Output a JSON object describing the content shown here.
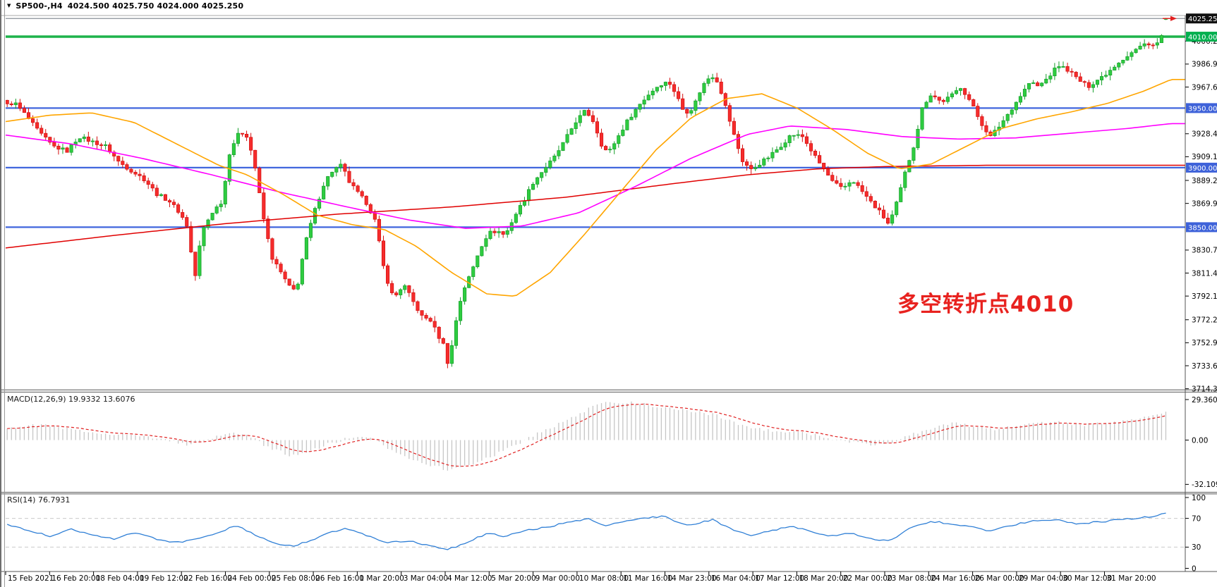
{
  "window": {
    "symbol_period": "SP500-,H4",
    "ohlc": "4024.500 4025.750 4024.000 4025.250"
  },
  "indicators": {
    "macd_label": "MACD(12,26,9) 19.9332 13.6076",
    "rsi_label": "RSI(14) 76.7931"
  },
  "annotation": {
    "text": "多空转折点4010",
    "color": "#e8221f"
  },
  "colors": {
    "up_fill": "#2ecc40",
    "up_stroke": "#169e2b",
    "down_fill": "#f52c2c",
    "down_stroke": "#d40f0f",
    "ma_fast_orange": "#ffa500",
    "ma_mid_magenta": "#ff00ff",
    "ma_slow_red": "#e00000",
    "macd_hist": "#c6c6c6",
    "macd_signal": "#e02020",
    "rsi_line": "#2f7fd6",
    "rsi_level_dash": "#c9c9c9",
    "level_blue": "#4066dd",
    "level_green": "#1db34a",
    "current_price_line": "#8a9099",
    "badge_black": "#111111",
    "badge_green": "#00b050",
    "badge_blue": "#3e62d9",
    "axis_text": "#000000",
    "frame": "#555555"
  },
  "chart_data": {
    "type": "candlestick",
    "symbol": "SP500-",
    "timeframe": "H4",
    "current_ohlc": {
      "open": 4024.5,
      "high": 4025.75,
      "low": 4024.0,
      "close": 4025.25
    },
    "y_axis": {
      "range_top": 4031.5,
      "range_bottom": 3711.5,
      "ticks": [
        {
          "label": "4006.280",
          "price": 4006.28
        },
        {
          "label": "3986.975",
          "price": 3986.975
        },
        {
          "label": "3967.670",
          "price": 3967.67
        },
        {
          "label": "3928.475",
          "price": 3928.475
        },
        {
          "label": "3909.170",
          "price": 3909.17
        },
        {
          "label": "3889.280",
          "price": 3889.28
        },
        {
          "label": "3869.975",
          "price": 3869.975
        },
        {
          "label": "3830.780",
          "price": 3830.78
        },
        {
          "label": "3811.475",
          "price": 3811.475
        },
        {
          "label": "3792.170",
          "price": 3792.17
        },
        {
          "label": "3772.280",
          "price": 3772.28
        },
        {
          "label": "3752.975",
          "price": 3752.975
        },
        {
          "label": "3733.670",
          "price": 3733.67
        },
        {
          "label": "3714.365",
          "price": 3714.365
        }
      ],
      "badges": [
        {
          "label": "4025.250",
          "price": 4025.25,
          "bg": "badge_black"
        },
        {
          "label": "4010.000",
          "price": 4010.0,
          "bg": "badge_green"
        },
        {
          "label": "3950.000",
          "price": 3950.0,
          "bg": "badge_blue"
        },
        {
          "label": "3900.000",
          "price": 3900.0,
          "bg": "badge_blue"
        },
        {
          "label": "3850.000",
          "price": 3850.0,
          "bg": "badge_blue"
        }
      ]
    },
    "levels": [
      {
        "price": 4025.25,
        "color": "current_price_line",
        "width": 1.2
      },
      {
        "price": 4010.0,
        "color": "level_green",
        "width": 3.5
      },
      {
        "price": 3950.0,
        "color": "level_blue",
        "width": 2.2
      },
      {
        "price": 3900.0,
        "color": "level_blue",
        "width": 2.2
      },
      {
        "price": 3850.0,
        "color": "level_blue",
        "width": 2.2
      }
    ],
    "time_axis": {
      "labels": [
        "15 Feb 2021",
        "16 Feb 20:00",
        "18 Feb 04:00",
        "19 Feb 12:00",
        "22 Feb 16:00",
        "24 Feb 00:00",
        "25 Feb 08:00",
        "26 Feb 16:00",
        "1 Mar 20:00",
        "3 Mar 04:00",
        "4 Mar 12:00",
        "5 Mar 20:00",
        "9 Mar 00:00",
        "10 Mar 08:00",
        "11 Mar 16:00",
        "14 Mar 23:00",
        "16 Mar 04:00",
        "17 Mar 12:00",
        "18 Mar 20:00",
        "22 Mar 00:00",
        "23 Mar 08:00",
        "24 Mar 16:00",
        "26 Mar 00:00",
        "29 Mar 04:00",
        "30 Mar 12:00",
        "31 Mar 20:00"
      ]
    },
    "price_path": [
      [
        8,
        3952
      ],
      [
        20,
        3955
      ],
      [
        35,
        3945
      ],
      [
        55,
        3930
      ],
      [
        75,
        3918
      ],
      [
        95,
        3914
      ],
      [
        112,
        3926
      ],
      [
        130,
        3922
      ],
      [
        150,
        3918
      ],
      [
        168,
        3905
      ],
      [
        185,
        3898
      ],
      [
        205,
        3890
      ],
      [
        222,
        3878
      ],
      [
        240,
        3872
      ],
      [
        255,
        3862
      ],
      [
        266,
        3850
      ],
      [
        276,
        3806
      ],
      [
        286,
        3846
      ],
      [
        300,
        3862
      ],
      [
        315,
        3872
      ],
      [
        326,
        3915
      ],
      [
        338,
        3928
      ],
      [
        348,
        3930
      ],
      [
        360,
        3906
      ],
      [
        372,
        3862
      ],
      [
        385,
        3825
      ],
      [
        398,
        3812
      ],
      [
        410,
        3800
      ],
      [
        420,
        3796
      ],
      [
        432,
        3835
      ],
      [
        445,
        3862
      ],
      [
        460,
        3888
      ],
      [
        472,
        3898
      ],
      [
        484,
        3902
      ],
      [
        495,
        3888
      ],
      [
        508,
        3878
      ],
      [
        520,
        3870
      ],
      [
        532,
        3855
      ],
      [
        545,
        3812
      ],
      [
        558,
        3790
      ],
      [
        572,
        3802
      ],
      [
        585,
        3788
      ],
      [
        598,
        3775
      ],
      [
        610,
        3772
      ],
      [
        622,
        3758
      ],
      [
        630,
        3750
      ],
      [
        636,
        3732
      ],
      [
        644,
        3765
      ],
      [
        655,
        3795
      ],
      [
        668,
        3812
      ],
      [
        680,
        3832
      ],
      [
        692,
        3845
      ],
      [
        705,
        3847
      ],
      [
        716,
        3843
      ],
      [
        728,
        3858
      ],
      [
        742,
        3872
      ],
      [
        756,
        3888
      ],
      [
        770,
        3898
      ],
      [
        785,
        3908
      ],
      [
        800,
        3922
      ],
      [
        815,
        3938
      ],
      [
        830,
        3948
      ],
      [
        842,
        3938
      ],
      [
        852,
        3920
      ],
      [
        862,
        3912
      ],
      [
        875,
        3925
      ],
      [
        890,
        3940
      ],
      [
        905,
        3952
      ],
      [
        920,
        3962
      ],
      [
        935,
        3970
      ],
      [
        948,
        3972
      ],
      [
        958,
        3962
      ],
      [
        970,
        3946
      ],
      [
        982,
        3950
      ],
      [
        995,
        3968
      ],
      [
        1008,
        3978
      ],
      [
        1018,
        3972
      ],
      [
        1028,
        3952
      ],
      [
        1040,
        3928
      ],
      [
        1052,
        3906
      ],
      [
        1065,
        3898
      ],
      [
        1078,
        3904
      ],
      [
        1092,
        3910
      ],
      [
        1106,
        3918
      ],
      [
        1122,
        3928
      ],
      [
        1138,
        3926
      ],
      [
        1152,
        3912
      ],
      [
        1166,
        3900
      ],
      [
        1180,
        3888
      ],
      [
        1194,
        3882
      ],
      [
        1208,
        3890
      ],
      [
        1222,
        3880
      ],
      [
        1236,
        3870
      ],
      [
        1248,
        3862
      ],
      [
        1260,
        3852
      ],
      [
        1272,
        3872
      ],
      [
        1284,
        3898
      ],
      [
        1296,
        3920
      ],
      [
        1308,
        3952
      ],
      [
        1320,
        3962
      ],
      [
        1334,
        3955
      ],
      [
        1348,
        3960
      ],
      [
        1362,
        3968
      ],
      [
        1376,
        3955
      ],
      [
        1390,
        3938
      ],
      [
        1404,
        3926
      ],
      [
        1418,
        3936
      ],
      [
        1432,
        3948
      ],
      [
        1446,
        3960
      ],
      [
        1460,
        3972
      ],
      [
        1472,
        3968
      ],
      [
        1486,
        3976
      ],
      [
        1500,
        3986
      ],
      [
        1514,
        3982
      ],
      [
        1528,
        3974
      ],
      [
        1542,
        3968
      ],
      [
        1556,
        3974
      ],
      [
        1570,
        3980
      ],
      [
        1584,
        3988
      ],
      [
        1598,
        3994
      ],
      [
        1612,
        4000
      ],
      [
        1626,
        4005
      ],
      [
        1638,
        4002
      ],
      [
        1646,
        4010
      ],
      [
        1652,
        4018
      ],
      [
        1656,
        4024
      ]
    ],
    "ma_orange": [
      [
        0,
        3938
      ],
      [
        70,
        3944
      ],
      [
        130,
        3946
      ],
      [
        190,
        3938
      ],
      [
        250,
        3920
      ],
      [
        310,
        3902
      ],
      [
        350,
        3894
      ],
      [
        400,
        3878
      ],
      [
        450,
        3860
      ],
      [
        500,
        3852
      ],
      [
        545,
        3848
      ],
      [
        590,
        3834
      ],
      [
        640,
        3812
      ],
      [
        690,
        3794
      ],
      [
        730,
        3792
      ],
      [
        780,
        3812
      ],
      [
        830,
        3845
      ],
      [
        880,
        3880
      ],
      [
        930,
        3915
      ],
      [
        980,
        3942
      ],
      [
        1030,
        3958
      ],
      [
        1080,
        3962
      ],
      [
        1130,
        3950
      ],
      [
        1180,
        3932
      ],
      [
        1230,
        3912
      ],
      [
        1275,
        3899
      ],
      [
        1320,
        3903
      ],
      [
        1370,
        3918
      ],
      [
        1420,
        3933
      ],
      [
        1470,
        3941
      ],
      [
        1520,
        3947
      ],
      [
        1570,
        3954
      ],
      [
        1620,
        3964
      ],
      [
        1660,
        3974
      ]
    ],
    "ma_magenta": [
      [
        0,
        3928
      ],
      [
        100,
        3920
      ],
      [
        200,
        3908
      ],
      [
        300,
        3894
      ],
      [
        400,
        3879
      ],
      [
        500,
        3866
      ],
      [
        580,
        3856
      ],
      [
        660,
        3849
      ],
      [
        740,
        3851
      ],
      [
        820,
        3862
      ],
      [
        900,
        3884
      ],
      [
        980,
        3908
      ],
      [
        1060,
        3928
      ],
      [
        1120,
        3935
      ],
      [
        1200,
        3932
      ],
      [
        1280,
        3926
      ],
      [
        1360,
        3924
      ],
      [
        1440,
        3925
      ],
      [
        1520,
        3929
      ],
      [
        1600,
        3933
      ],
      [
        1660,
        3937
      ]
    ],
    "ma_red": [
      [
        0,
        3832
      ],
      [
        160,
        3843
      ],
      [
        320,
        3853
      ],
      [
        480,
        3861
      ],
      [
        640,
        3867
      ],
      [
        800,
        3875
      ],
      [
        960,
        3887
      ],
      [
        1060,
        3894
      ],
      [
        1160,
        3899
      ],
      [
        1260,
        3901
      ],
      [
        1400,
        3902
      ],
      [
        1550,
        3902
      ],
      [
        1660,
        3902
      ]
    ],
    "macd": {
      "current_main": 19.9332,
      "current_signal": 13.6076,
      "scale_ticks": [
        {
          "label": "29.3605",
          "v": 29.3605
        },
        {
          "label": "0.00",
          "v": 0
        },
        {
          "label": "-32.1096",
          "v": -32.1096
        }
      ],
      "path": [
        [
          8,
          9
        ],
        [
          60,
          11
        ],
        [
          120,
          6
        ],
        [
          180,
          4
        ],
        [
          240,
          0
        ],
        [
          270,
          -4
        ],
        [
          300,
          1
        ],
        [
          330,
          6
        ],
        [
          352,
          3
        ],
        [
          380,
          -5
        ],
        [
          410,
          -11
        ],
        [
          440,
          -8
        ],
        [
          470,
          -2
        ],
        [
          500,
          2
        ],
        [
          525,
          1
        ],
        [
          548,
          -5
        ],
        [
          575,
          -12
        ],
        [
          605,
          -17
        ],
        [
          635,
          -22
        ],
        [
          665,
          -18
        ],
        [
          695,
          -12
        ],
        [
          722,
          -6
        ],
        [
          750,
          2
        ],
        [
          780,
          9
        ],
        [
          810,
          16
        ],
        [
          840,
          24
        ],
        [
          865,
          28
        ],
        [
          895,
          27
        ],
        [
          925,
          25
        ],
        [
          955,
          22
        ],
        [
          985,
          21
        ],
        [
          1015,
          18
        ],
        [
          1045,
          12
        ],
        [
          1075,
          8
        ],
        [
          1105,
          6
        ],
        [
          1140,
          5
        ],
        [
          1170,
          2
        ],
        [
          1200,
          -1
        ],
        [
          1235,
          -3
        ],
        [
          1262,
          -2
        ],
        [
          1292,
          4
        ],
        [
          1322,
          9
        ],
        [
          1352,
          12
        ],
        [
          1382,
          10
        ],
        [
          1412,
          8
        ],
        [
          1442,
          10
        ],
        [
          1472,
          12
        ],
        [
          1502,
          13
        ],
        [
          1532,
          11
        ],
        [
          1562,
          12
        ],
        [
          1592,
          14
        ],
        [
          1622,
          17
        ],
        [
          1656,
          20
        ]
      ]
    },
    "rsi": {
      "current": 76.7931,
      "levels": [
        70,
        30
      ],
      "scale_ticks": [
        {
          "label": "100",
          "v": 100
        },
        {
          "label": "70",
          "v": 70
        },
        {
          "label": "30",
          "v": 30
        },
        {
          "label": "0",
          "v": 0
        }
      ],
      "path": [
        [
          8,
          62
        ],
        [
          40,
          54
        ],
        [
          70,
          45
        ],
        [
          100,
          55
        ],
        [
          130,
          48
        ],
        [
          160,
          41
        ],
        [
          190,
          50
        ],
        [
          220,
          42
        ],
        [
          250,
          36
        ],
        [
          280,
          41
        ],
        [
          310,
          49
        ],
        [
          335,
          61
        ],
        [
          355,
          50
        ],
        [
          385,
          36
        ],
        [
          415,
          31
        ],
        [
          445,
          41
        ],
        [
          468,
          50
        ],
        [
          490,
          56
        ],
        [
          520,
          46
        ],
        [
          550,
          36
        ],
        [
          580,
          39
        ],
        [
          610,
          31
        ],
        [
          636,
          27
        ],
        [
          662,
          37
        ],
        [
          690,
          49
        ],
        [
          716,
          45
        ],
        [
          745,
          53
        ],
        [
          775,
          58
        ],
        [
          805,
          64
        ],
        [
          835,
          69
        ],
        [
          856,
          59
        ],
        [
          880,
          64
        ],
        [
          910,
          70
        ],
        [
          940,
          73
        ],
        [
          962,
          63
        ],
        [
          985,
          61
        ],
        [
          1010,
          69
        ],
        [
          1040,
          53
        ],
        [
          1066,
          45
        ],
        [
          1092,
          53
        ],
        [
          1122,
          59
        ],
        [
          1148,
          52
        ],
        [
          1176,
          45
        ],
        [
          1205,
          49
        ],
        [
          1236,
          42
        ],
        [
          1260,
          38
        ],
        [
          1290,
          56
        ],
        [
          1320,
          66
        ],
        [
          1350,
          62
        ],
        [
          1380,
          58
        ],
        [
          1406,
          52
        ],
        [
          1436,
          61
        ],
        [
          1466,
          67
        ],
        [
          1496,
          68
        ],
        [
          1526,
          62
        ],
        [
          1556,
          65
        ],
        [
          1586,
          68
        ],
        [
          1616,
          71
        ],
        [
          1640,
          74
        ],
        [
          1656,
          77
        ]
      ]
    }
  }
}
